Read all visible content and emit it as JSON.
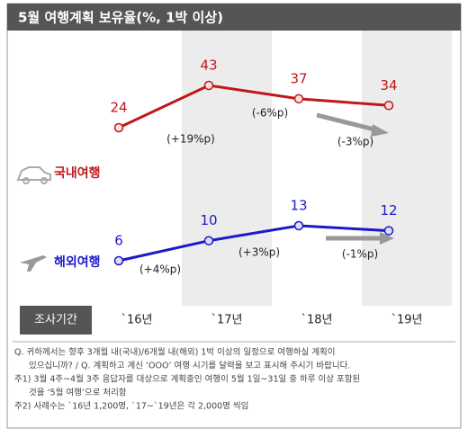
{
  "chart_data": {
    "type": "line",
    "title": "5월 여행계획 보유율(%, 1박 이상)",
    "period_label": "조사기간",
    "categories": [
      "`16년",
      "`17년",
      "`18년",
      "`19년"
    ],
    "series": [
      {
        "name": "국내여행",
        "color": "#c0171b",
        "values": [
          24,
          43,
          37,
          34
        ]
      },
      {
        "name": "해외여행",
        "color": "#1a1ac8",
        "values": [
          6,
          10,
          13,
          12
        ]
      }
    ],
    "annotations": [
      {
        "series": 0,
        "text": "(+19%p)"
      },
      {
        "series": 0,
        "text": "(-6%p)"
      },
      {
        "series": 0,
        "text": "(-3%p)"
      },
      {
        "series": 1,
        "text": "(+4%p)"
      },
      {
        "series": 1,
        "text": "(+3%p)"
      },
      {
        "series": 1,
        "text": "(-1%p)"
      }
    ],
    "notes": [
      "Q. 귀하께서는 향후 3개월 내(국내)/6개월 내(해외) 1박 이상의 일정으로 여행하실 계획이",
      "있으십니까? / Q. 계획하고 계신 ‘OOO’ 여행 시기를 달력을 보고 표시해 주시기 바랍니다.",
      "주1) 3월 4주~4월 3주 응답자를 대상으로 계획중인 여행이 5월 1일~31일 중 하루 이상 포함된",
      "것을 ‘5월 여행’으로 처리함",
      "주2) 사례수는 `16년 1,200명, `17~`19년은 각 2,000명 씩임"
    ]
  }
}
